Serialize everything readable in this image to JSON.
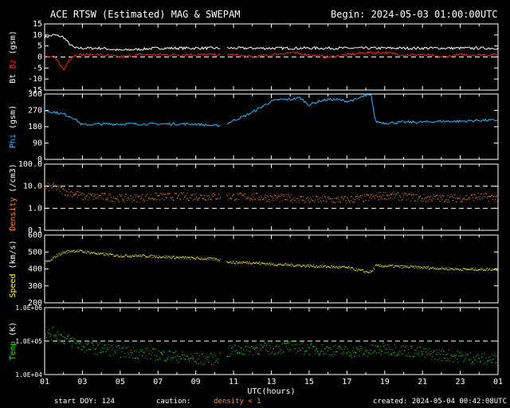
{
  "header": {
    "title": "ACE RTSW (Estimated) MAG & SWEPAM",
    "begin": "Begin: 2024-05-03 01:00:00UTC"
  },
  "footer": {
    "start_doy": "start DOY: 124",
    "caution": "caution:",
    "density_note": "density < 1",
    "created": "created: 2024-05-04 00:42:08UTC"
  },
  "colors": {
    "bt": "#ffffff",
    "bz": "#ff2020",
    "phi": "#20b8ff",
    "density": "#ff8c1a",
    "speed": "#ffff33",
    "temp": "#22dd22",
    "axis": "#ffffff",
    "background": "#000000"
  },
  "chart_data": [
    {
      "type": "line",
      "panel": "mag",
      "ylabel_parts": [
        "Bt",
        "Bz",
        "(gsm)"
      ],
      "ylim": [
        -15,
        15
      ],
      "yticks": [
        "15",
        "10",
        "5",
        "0",
        "-5",
        "-10",
        "-15"
      ],
      "dashed_ref": [
        0
      ],
      "series": [
        {
          "name": "Bt",
          "x": [
            1,
            1.5,
            2,
            2.3,
            2.6,
            3,
            4,
            5,
            6,
            7,
            8,
            9,
            10,
            11,
            12,
            13,
            14,
            15,
            16,
            17,
            18,
            19,
            20,
            21,
            22,
            23,
            24,
            25
          ],
          "values": [
            9,
            10,
            9,
            6,
            4,
            4,
            4,
            3,
            3.5,
            4,
            4,
            4,
            4,
            4,
            4,
            4,
            4,
            4,
            4,
            4,
            4,
            4,
            4,
            4,
            4,
            4,
            4,
            4
          ]
        },
        {
          "name": "Bz",
          "x": [
            1,
            1.5,
            1.8,
            2,
            2.3,
            2.6,
            3,
            4,
            5,
            6,
            7,
            8,
            9,
            10,
            11,
            12,
            13,
            14,
            15,
            16,
            17,
            18,
            19,
            20,
            21,
            22,
            23,
            24,
            25
          ],
          "values": [
            0,
            0,
            -3,
            -6,
            -1,
            1,
            1,
            1,
            0,
            1,
            1,
            1,
            1,
            1,
            1,
            0,
            1,
            2,
            1,
            0,
            1,
            2,
            2,
            1,
            1,
            0,
            1,
            1,
            1
          ]
        }
      ],
      "gap_x": [
        [
          10.3,
          10.6
        ]
      ]
    },
    {
      "type": "line",
      "panel": "phi",
      "ylabel_parts": [
        "Phi",
        "(gsm)"
      ],
      "ylim": [
        0,
        360
      ],
      "yticks": [
        "360",
        "270",
        "180",
        "90",
        "0"
      ],
      "series": [
        {
          "name": "Phi",
          "x": [
            1,
            1.5,
            2,
            2.5,
            3,
            4,
            5,
            6,
            7,
            8,
            9,
            10,
            10.5,
            11,
            11.5,
            12,
            12.5,
            13,
            13.5,
            14,
            14.5,
            15,
            15.5,
            16,
            16.5,
            17,
            17.5,
            18,
            18.3,
            18.5,
            19,
            20,
            21,
            22,
            23,
            24,
            25
          ],
          "values": [
            270,
            260,
            250,
            230,
            190,
            195,
            195,
            195,
            195,
            195,
            195,
            185,
            190,
            215,
            235,
            260,
            290,
            320,
            330,
            330,
            340,
            300,
            320,
            330,
            330,
            320,
            330,
            355,
            350,
            210,
            200,
            205,
            205,
            210,
            210,
            215,
            215
          ]
        }
      ]
    },
    {
      "type": "scatter",
      "panel": "density",
      "ylabel_parts": [
        "Density",
        "(/cm3)"
      ],
      "ylim_log10": [
        -1,
        2
      ],
      "yticks": [
        "100.0",
        "10.0",
        "1.0",
        "0.1"
      ],
      "dashed_ref": [
        10,
        1
      ],
      "series": [
        {
          "name": "Density",
          "x": [
            1,
            1.5,
            2,
            2.5,
            3,
            4,
            5,
            6,
            7,
            8,
            9,
            10,
            11,
            12,
            13,
            14,
            15,
            16,
            17,
            18,
            19,
            20,
            21,
            22,
            23,
            24,
            25
          ],
          "values": [
            9,
            10,
            6,
            5,
            3.5,
            3.5,
            3,
            3,
            3.5,
            3.5,
            3.5,
            3.5,
            3.5,
            3.5,
            3,
            3,
            2.5,
            2.5,
            2.5,
            3,
            4,
            3.5,
            3,
            3,
            3,
            3.5,
            3
          ]
        }
      ]
    },
    {
      "type": "scatter",
      "panel": "speed",
      "ylabel_parts": [
        "Speed",
        "(km/s)"
      ],
      "ylim": [
        200,
        600
      ],
      "yticks": [
        "600",
        "500",
        "400",
        "300",
        "200"
      ],
      "series": [
        {
          "name": "Speed",
          "x": [
            1,
            1.3,
            1.6,
            2,
            2.5,
            3,
            4,
            5,
            6,
            7,
            8,
            9,
            10,
            11,
            12,
            13,
            14,
            15,
            16,
            17,
            18,
            18.3,
            18.5,
            19,
            20,
            21,
            22,
            23,
            24,
            25
          ],
          "values": [
            440,
            450,
            480,
            500,
            510,
            505,
            490,
            480,
            480,
            475,
            470,
            465,
            460,
            440,
            440,
            430,
            425,
            420,
            415,
            410,
            385,
            385,
            420,
            420,
            415,
            410,
            405,
            400,
            400,
            400
          ]
        }
      ]
    },
    {
      "type": "scatter",
      "panel": "temp",
      "ylabel_parts": [
        "Temp",
        "(K)"
      ],
      "ylim_log10": [
        4,
        6
      ],
      "yticks": [
        "1.0E+06",
        "1.0E+05",
        "1.0E+04"
      ],
      "dashed_ref": [
        100000
      ],
      "series": [
        {
          "name": "Temp",
          "x": [
            1,
            1.5,
            2,
            2.5,
            3,
            4,
            5,
            6,
            7,
            8,
            9,
            10,
            11,
            12,
            13,
            14,
            15,
            16,
            17,
            18,
            19,
            20,
            21,
            22,
            23,
            24,
            25
          ],
          "values": [
            150000,
            180000,
            120000,
            100000,
            70000,
            60000,
            50000,
            45000,
            40000,
            35000,
            30000,
            30000,
            55000,
            60000,
            60000,
            70000,
            60000,
            55000,
            50000,
            50000,
            60000,
            55000,
            45000,
            40000,
            35000,
            30000,
            30000
          ]
        }
      ]
    }
  ],
  "x_axis": {
    "xlim": [
      1,
      25
    ],
    "ticks": [
      "01",
      "03",
      "05",
      "07",
      "09",
      "11",
      "13",
      "15",
      "17",
      "19",
      "21",
      "23",
      "01"
    ],
    "label": "UTC(hours)"
  }
}
